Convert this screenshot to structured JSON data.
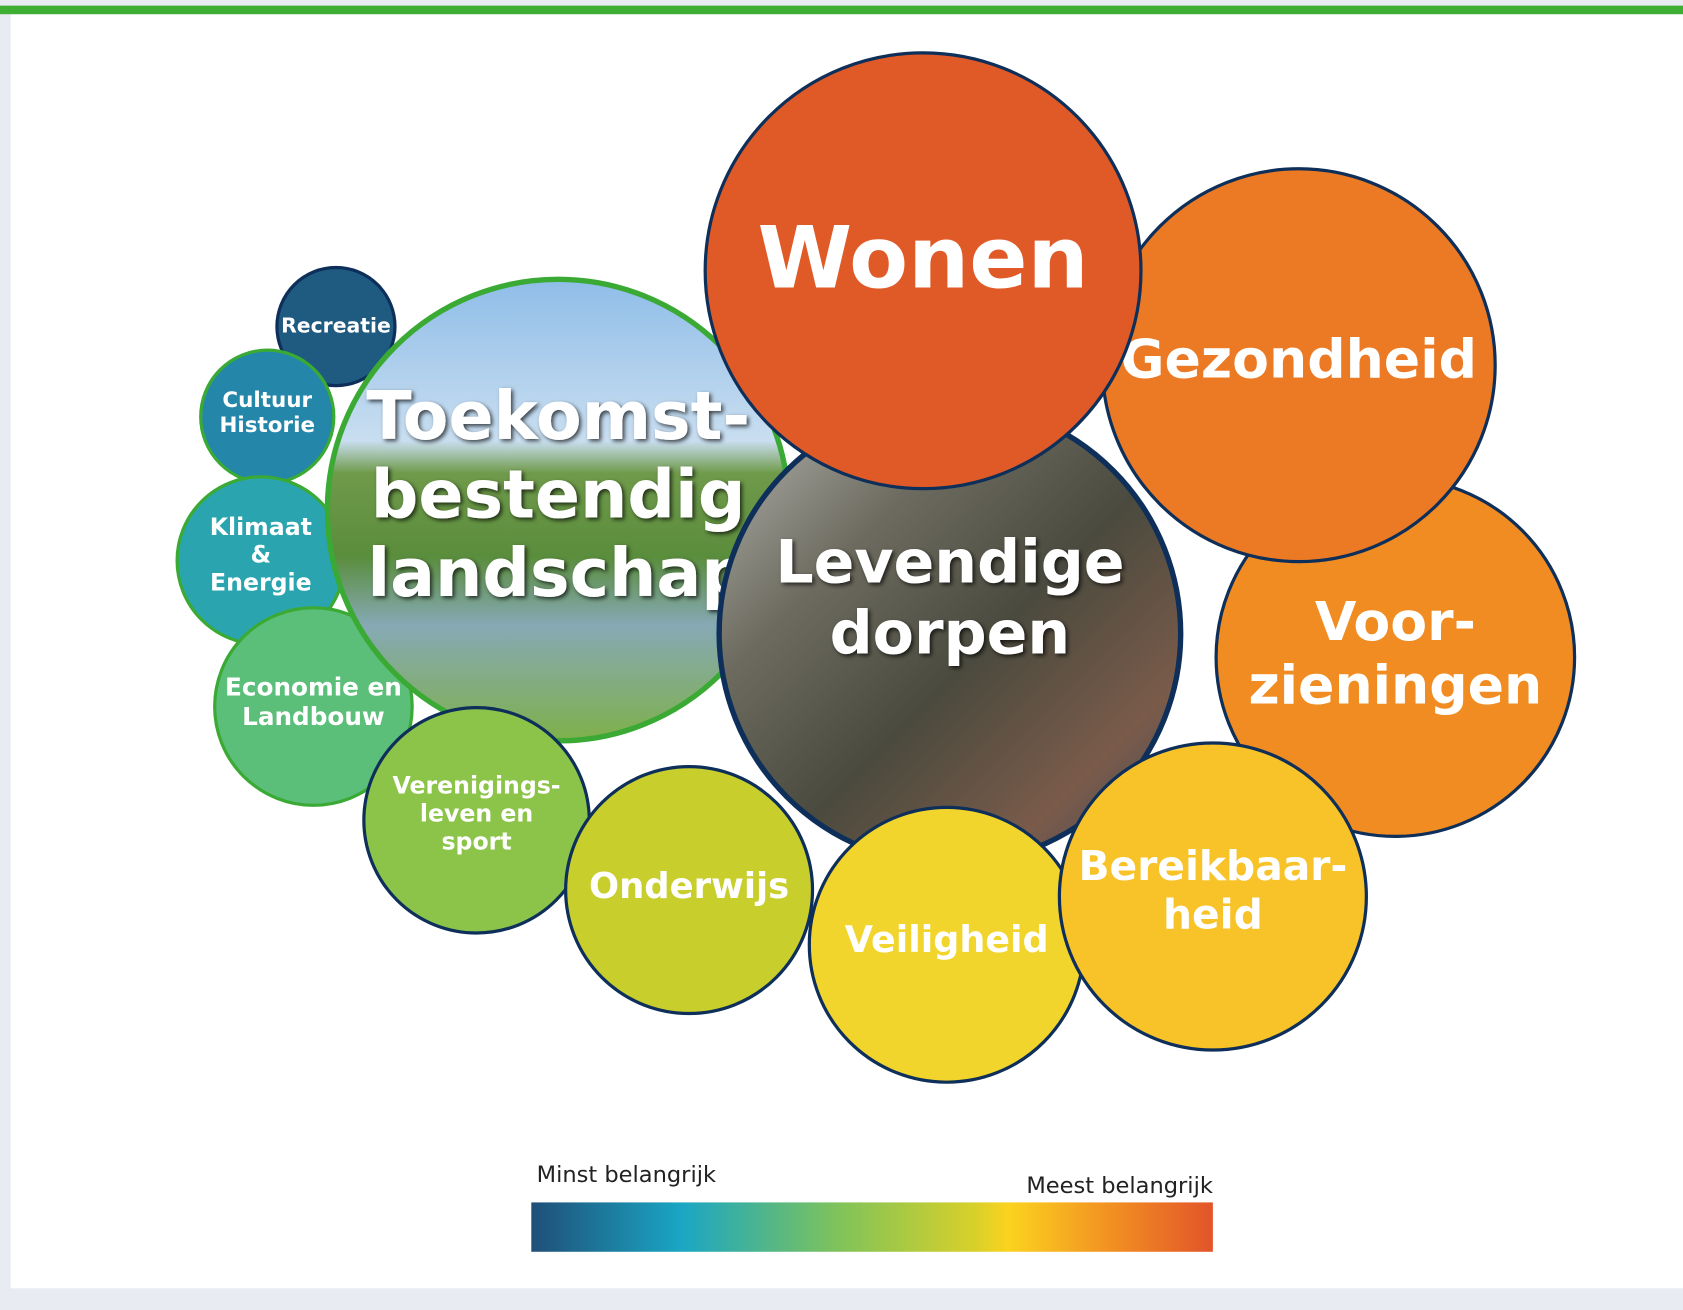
{
  "nodes": [
    {
      "lines": [
        "Recreatie"
      ]
    },
    {
      "lines": [
        "Cultuur",
        "Historie"
      ]
    },
    {
      "lines": [
        "Klimaat",
        "&",
        "Energie"
      ]
    },
    {
      "lines": [
        "Economie en",
        "Landbouw"
      ]
    },
    {
      "lines": [
        "Toekomst-",
        "bestendig",
        "landschap"
      ]
    },
    {
      "lines": [
        "Verenigings-",
        "leven en",
        "sport"
      ]
    },
    {
      "lines": [
        "Onderwijs"
      ]
    },
    {
      "lines": [
        "Levendige",
        "dorpen"
      ]
    },
    {
      "lines": [
        "Veiligheid"
      ]
    },
    {
      "lines": [
        "Voor-",
        "zieningen"
      ]
    },
    {
      "lines": [
        "Gezondheid"
      ]
    },
    {
      "lines": [
        "Bereikbaar-",
        "heid"
      ]
    },
    {
      "lines": [
        "Wonen"
      ]
    }
  ],
  "legend": {
    "min_label": "Minst belangrijk",
    "max_label": "Meest belangrijk"
  }
}
